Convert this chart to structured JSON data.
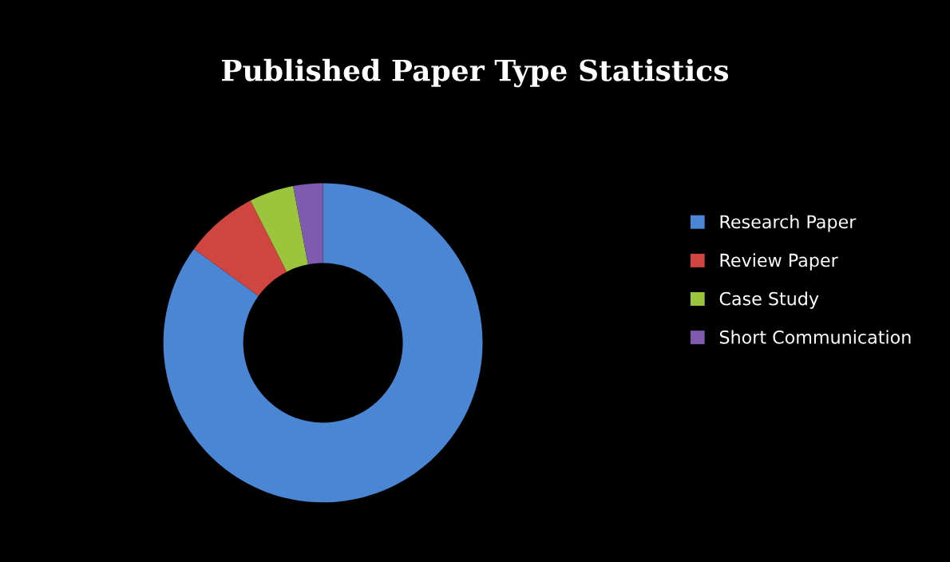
{
  "chart_data": {
    "type": "donut",
    "title": "Published Paper Type Statistics",
    "categories": [
      "Research Paper",
      "Review Paper",
      "Case Study",
      "Short Communication"
    ],
    "values": [
      85,
      7.5,
      4.5,
      3
    ],
    "colors": [
      "#4a86d4",
      "#d0453f",
      "#9bc53d",
      "#7f5bb0"
    ],
    "legend": "right"
  }
}
